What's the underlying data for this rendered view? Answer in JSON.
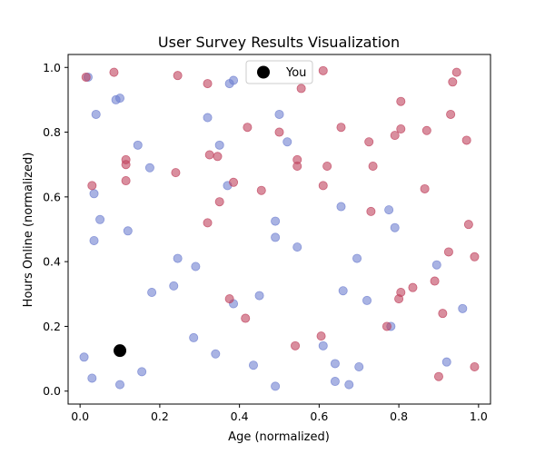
{
  "chart_data": {
    "type": "scatter",
    "title": "User Survey Results Visualization",
    "xlabel": "Age (normalized)",
    "ylabel": "Hours Online (normalized)",
    "xlim": [
      -0.03,
      1.03
    ],
    "ylim": [
      -0.04,
      1.04
    ],
    "x_ticks": [
      0.0,
      0.2,
      0.4,
      0.6,
      0.8,
      1.0
    ],
    "y_ticks": [
      0.0,
      0.2,
      0.4,
      0.6,
      0.8,
      1.0
    ],
    "x_tick_labels": [
      "0.0",
      "0.2",
      "0.4",
      "0.6",
      "0.8",
      "1.0"
    ],
    "y_tick_labels": [
      "0.0",
      "0.2",
      "0.4",
      "0.6",
      "0.8",
      "1.0"
    ],
    "grid": false,
    "legend_position": "top-center",
    "colors": {
      "blue": "#7080d0",
      "red": "#c0425e",
      "you": "#000000"
    },
    "series": [
      {
        "color_key": "blue",
        "points": [
          [
            0.02,
            0.97
          ],
          [
            0.04,
            0.855
          ],
          [
            0.09,
            0.9
          ],
          [
            0.1,
            0.905
          ],
          [
            0.375,
            0.95
          ],
          [
            0.385,
            0.96
          ],
          [
            0.32,
            0.845
          ],
          [
            0.35,
            0.76
          ],
          [
            0.5,
            0.855
          ],
          [
            0.52,
            0.77
          ],
          [
            0.145,
            0.76
          ],
          [
            0.175,
            0.69
          ],
          [
            0.37,
            0.635
          ],
          [
            0.035,
            0.61
          ],
          [
            0.05,
            0.53
          ],
          [
            0.035,
            0.465
          ],
          [
            0.12,
            0.495
          ],
          [
            0.245,
            0.41
          ],
          [
            0.29,
            0.385
          ],
          [
            0.18,
            0.305
          ],
          [
            0.235,
            0.325
          ],
          [
            0.45,
            0.295
          ],
          [
            0.385,
            0.27
          ],
          [
            0.49,
            0.525
          ],
          [
            0.49,
            0.475
          ],
          [
            0.545,
            0.445
          ],
          [
            0.655,
            0.57
          ],
          [
            0.775,
            0.56
          ],
          [
            0.79,
            0.505
          ],
          [
            0.695,
            0.41
          ],
          [
            0.66,
            0.31
          ],
          [
            0.72,
            0.28
          ],
          [
            0.895,
            0.39
          ],
          [
            0.96,
            0.255
          ],
          [
            0.78,
            0.2
          ],
          [
            0.285,
            0.165
          ],
          [
            0.34,
            0.115
          ],
          [
            0.155,
            0.06
          ],
          [
            0.1,
            0.02
          ],
          [
            0.03,
            0.04
          ],
          [
            0.01,
            0.105
          ],
          [
            0.435,
            0.08
          ],
          [
            0.49,
            0.015
          ],
          [
            0.61,
            0.14
          ],
          [
            0.64,
            0.085
          ],
          [
            0.64,
            0.03
          ],
          [
            0.675,
            0.02
          ],
          [
            0.7,
            0.075
          ],
          [
            0.92,
            0.09
          ]
        ]
      },
      {
        "color_key": "red",
        "points": [
          [
            0.015,
            0.97
          ],
          [
            0.085,
            0.985
          ],
          [
            0.245,
            0.975
          ],
          [
            0.32,
            0.95
          ],
          [
            0.555,
            0.935
          ],
          [
            0.61,
            0.99
          ],
          [
            0.805,
            0.895
          ],
          [
            0.935,
            0.955
          ],
          [
            0.945,
            0.985
          ],
          [
            0.93,
            0.855
          ],
          [
            0.97,
            0.775
          ],
          [
            0.87,
            0.805
          ],
          [
            0.805,
            0.81
          ],
          [
            0.79,
            0.79
          ],
          [
            0.725,
            0.77
          ],
          [
            0.735,
            0.695
          ],
          [
            0.655,
            0.815
          ],
          [
            0.5,
            0.8
          ],
          [
            0.42,
            0.815
          ],
          [
            0.325,
            0.73
          ],
          [
            0.345,
            0.725
          ],
          [
            0.545,
            0.715
          ],
          [
            0.545,
            0.695
          ],
          [
            0.62,
            0.695
          ],
          [
            0.385,
            0.645
          ],
          [
            0.455,
            0.62
          ],
          [
            0.61,
            0.635
          ],
          [
            0.865,
            0.625
          ],
          [
            0.115,
            0.715
          ],
          [
            0.115,
            0.7
          ],
          [
            0.115,
            0.65
          ],
          [
            0.24,
            0.675
          ],
          [
            0.03,
            0.635
          ],
          [
            0.35,
            0.585
          ],
          [
            0.32,
            0.52
          ],
          [
            0.73,
            0.555
          ],
          [
            0.975,
            0.515
          ],
          [
            0.925,
            0.43
          ],
          [
            0.99,
            0.415
          ],
          [
            0.835,
            0.32
          ],
          [
            0.89,
            0.34
          ],
          [
            0.805,
            0.305
          ],
          [
            0.8,
            0.285
          ],
          [
            0.91,
            0.24
          ],
          [
            0.77,
            0.2
          ],
          [
            0.375,
            0.285
          ],
          [
            0.415,
            0.225
          ],
          [
            0.605,
            0.17
          ],
          [
            0.54,
            0.14
          ],
          [
            0.9,
            0.045
          ],
          [
            0.99,
            0.075
          ]
        ]
      }
    ],
    "highlight": {
      "name": "You",
      "x": 0.1,
      "y": 0.125,
      "color_key": "you"
    }
  }
}
